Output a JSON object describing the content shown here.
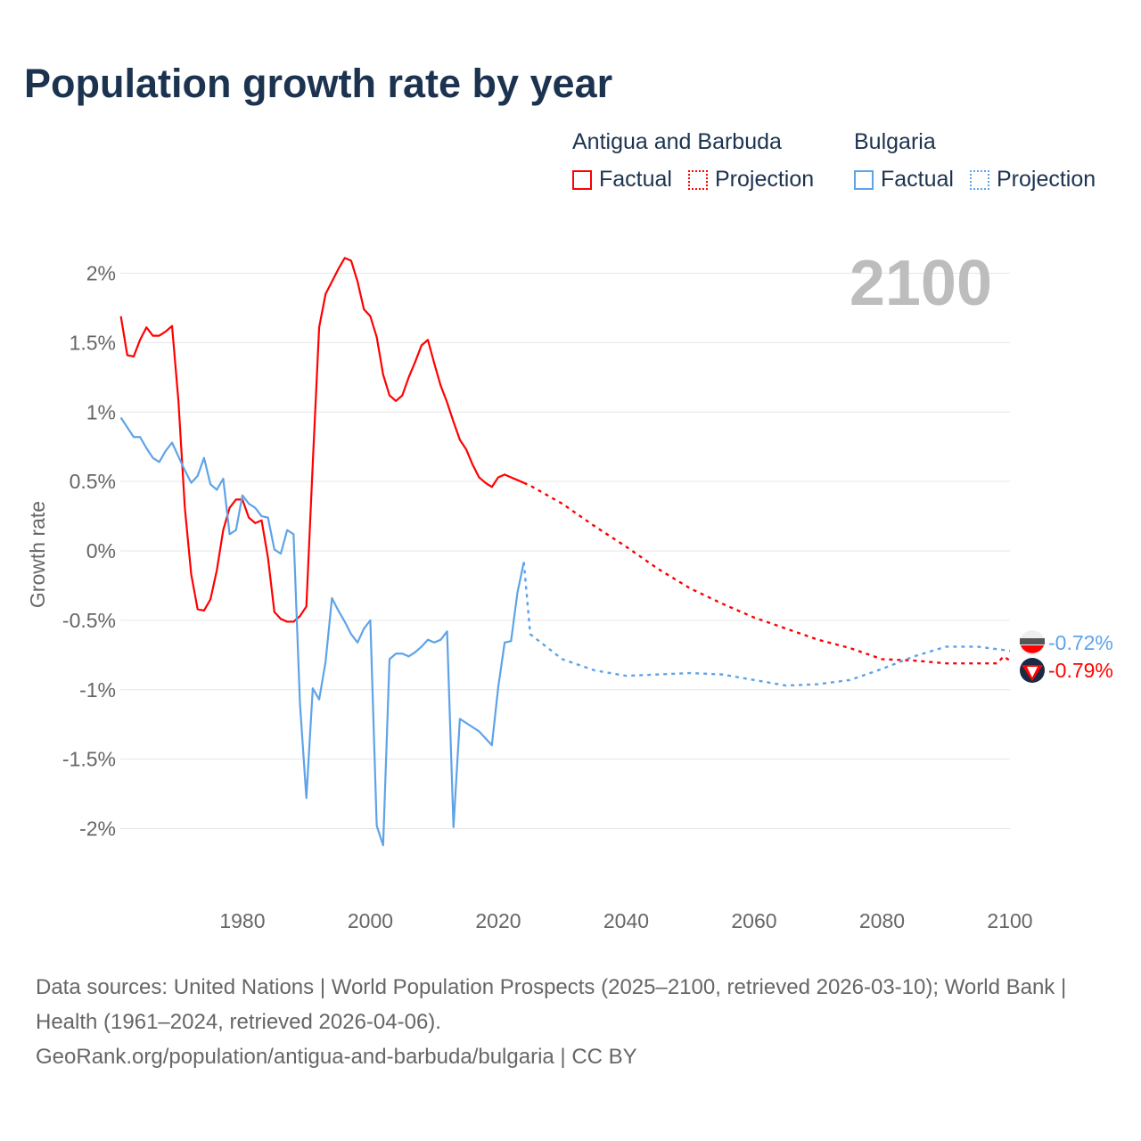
{
  "title": "Population growth rate by year",
  "legend": {
    "groups": [
      {
        "country": "Antigua and Barbuda",
        "factual": "Factual",
        "projection": "Projection",
        "color": "#ff0000"
      },
      {
        "country": "Bulgaria",
        "factual": "Factual",
        "projection": "Projection",
        "color": "#5ea3e8"
      }
    ]
  },
  "year_label": "2100",
  "footer": {
    "sources": "Data sources: United Nations | World Population Prospects (2025–2100, retrieved 2026-03-10); World Bank | Health (1961–2024, retrieved 2026-04-06).",
    "link": "GeoRank.org/population/antigua-and-barbuda/bulgaria | CC BY"
  },
  "chart_data": {
    "type": "line",
    "ylabel": "Growth rate",
    "xlabel": "",
    "xlim": [
      1961,
      2100
    ],
    "ylim": [
      -2.4,
      2.4
    ],
    "xticks": [
      1980,
      2000,
      2020,
      2040,
      2060,
      2080,
      2100
    ],
    "xtick_labels": [
      "1980",
      "2000",
      "2020",
      "2040",
      "2060",
      "2080",
      "2100"
    ],
    "yticks": [
      2,
      1.5,
      1,
      0.5,
      0,
      -0.5,
      -1,
      -1.5,
      -2
    ],
    "ytick_labels": [
      "2%",
      "1.5%",
      "1%",
      "0.5%",
      "0%",
      "-0.5%",
      "-1%",
      "-1.5%",
      "-2%"
    ],
    "grid": true,
    "legend_position": "top-right",
    "series": [
      {
        "name": "Antigua and Barbuda",
        "color": "#ff0000",
        "end_label": "-0.79%",
        "flag": "antigua-flag-icon",
        "factual": {
          "x_start": 1961,
          "values": [
            1.69,
            1.41,
            1.4,
            1.52,
            1.61,
            1.55,
            1.55,
            1.58,
            1.62,
            1.08,
            0.31,
            -0.17,
            -0.42,
            -0.43,
            -0.35,
            -0.14,
            0.15,
            0.31,
            0.37,
            0.37,
            0.24,
            0.2,
            0.22,
            -0.05,
            -0.44,
            -0.49,
            -0.51,
            -0.51,
            -0.47,
            -0.4,
            0.63,
            1.61,
            1.85,
            1.94,
            2.03,
            2.11,
            2.09,
            1.94,
            1.74,
            1.69,
            1.54,
            1.27,
            1.12,
            1.08,
            1.12,
            1.25,
            1.36,
            1.48,
            1.52,
            1.35,
            1.19,
            1.07,
            0.93,
            0.8,
            0.73,
            0.62,
            0.53,
            0.49,
            0.46,
            0.53,
            0.55,
            0.53,
            0.51,
            0.49
          ]
        },
        "projection": {
          "x": [
            2024,
            2025,
            2030,
            2035,
            2040,
            2045,
            2050,
            2055,
            2060,
            2065,
            2070,
            2075,
            2080,
            2085,
            2090,
            2095,
            2098,
            2099,
            2100
          ],
          "values": [
            0.49,
            0.47,
            0.34,
            0.18,
            0.03,
            -0.13,
            -0.27,
            -0.38,
            -0.48,
            -0.56,
            -0.64,
            -0.7,
            -0.78,
            -0.79,
            -0.81,
            -0.81,
            -0.81,
            -0.76,
            -0.79
          ]
        }
      },
      {
        "name": "Bulgaria",
        "color": "#5ea3e8",
        "end_label": "-0.72%",
        "flag": "bulgaria-flag-icon",
        "factual": {
          "x_start": 1961,
          "values": [
            0.96,
            0.89,
            0.82,
            0.82,
            0.74,
            0.67,
            0.64,
            0.72,
            0.78,
            0.68,
            0.58,
            0.49,
            0.54,
            0.67,
            0.48,
            0.44,
            0.52,
            0.12,
            0.15,
            0.4,
            0.34,
            0.31,
            0.25,
            0.24,
            0.01,
            -0.02,
            0.15,
            0.12,
            -1.1,
            -1.78,
            -0.99,
            -1.07,
            -0.8,
            -0.34,
            -0.43,
            -0.51,
            -0.6,
            -0.66,
            -0.56,
            -0.5,
            -1.98,
            -2.12,
            -0.78,
            -0.74,
            -0.74,
            -0.76,
            -0.73,
            -0.69,
            -0.64,
            -0.66,
            -0.64,
            -0.58,
            -1.99,
            -1.21,
            -1.24,
            -1.27,
            -1.3,
            -1.35,
            -1.4,
            -0.98,
            -0.66,
            -0.65,
            -0.3,
            -0.08
          ]
        },
        "projection": {
          "x": [
            2024,
            2025,
            2030,
            2035,
            2040,
            2045,
            2050,
            2055,
            2060,
            2065,
            2070,
            2075,
            2080,
            2085,
            2090,
            2095,
            2100
          ],
          "values": [
            -0.08,
            -0.6,
            -0.78,
            -0.86,
            -0.9,
            -0.89,
            -0.88,
            -0.89,
            -0.93,
            -0.97,
            -0.96,
            -0.93,
            -0.85,
            -0.76,
            -0.69,
            -0.69,
            -0.72
          ]
        }
      }
    ]
  }
}
